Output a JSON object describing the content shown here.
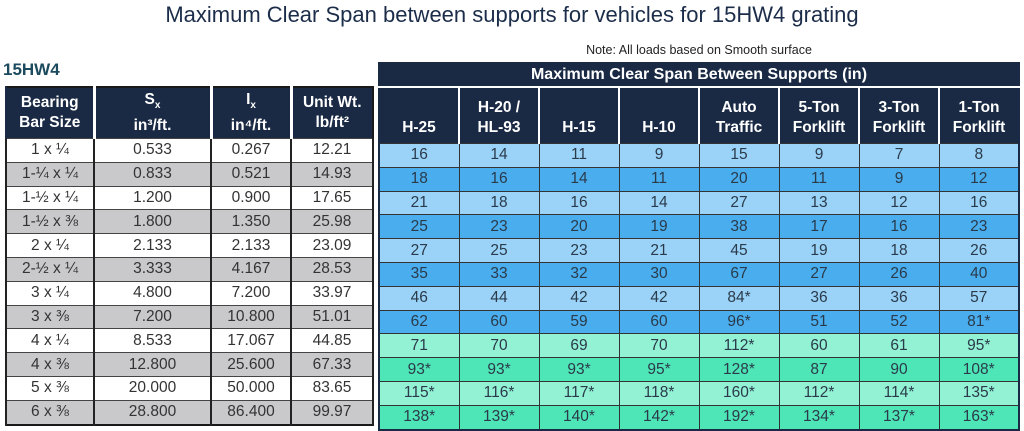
{
  "title": "Maximum Clear Span between supports for vehicles for 15HW4 grating",
  "note": "Note: All loads based on Smooth surface",
  "grating_code": "15HW4",
  "colors": {
    "header": "#1a2a44",
    "blue_light": "#9ad3f7",
    "blue_dark": "#4aaeee",
    "green_light": "#93f1d4",
    "green_dark": "#4fe6b7",
    "gray_row": "#c9c9cb"
  },
  "left_headers": [
    {
      "l1": "Bearing",
      "l2": "Bar Size"
    },
    {
      "l1": "S",
      "sub": "x",
      "l2": "in³/ft."
    },
    {
      "l1": "I",
      "sub": "x",
      "l2": "in⁴/ft."
    },
    {
      "l1": "Unit Wt.",
      "l2": "lb/ft²"
    }
  ],
  "span_header": "Maximum Clear Span Between Supports (in)",
  "span_columns": [
    {
      "l1": "",
      "l2": "H-25"
    },
    {
      "l1": "H-20 /",
      "l2": "HL-93"
    },
    {
      "l1": "",
      "l2": "H-15"
    },
    {
      "l1": "",
      "l2": "H-10"
    },
    {
      "l1": "Auto",
      "l2": "Traffic"
    },
    {
      "l1": "5-Ton",
      "l2": "Forklift"
    },
    {
      "l1": "3-Ton",
      "l2": "Forklift"
    },
    {
      "l1": "1-Ton",
      "l2": "Forklift"
    }
  ],
  "rows": [
    {
      "size": "1 x ¼",
      "sx": "0.533",
      "ix": "0.267",
      "wt": "12.21",
      "spans": [
        "16",
        "14",
        "11",
        "9",
        "15",
        "9",
        "7",
        "8"
      ]
    },
    {
      "size": "1-¼ x ¼",
      "sx": "0.833",
      "ix": "0.521",
      "wt": "14.93",
      "spans": [
        "18",
        "16",
        "14",
        "11",
        "20",
        "11",
        "9",
        "12"
      ]
    },
    {
      "size": "1-½ x ¼",
      "sx": "1.200",
      "ix": "0.900",
      "wt": "17.65",
      "spans": [
        "21",
        "18",
        "16",
        "14",
        "27",
        "13",
        "12",
        "16"
      ]
    },
    {
      "size": "1-½ x ⅜",
      "sx": "1.800",
      "ix": "1.350",
      "wt": "25.98",
      "spans": [
        "25",
        "23",
        "20",
        "19",
        "38",
        "17",
        "16",
        "23"
      ]
    },
    {
      "size": "2 x ¼",
      "sx": "2.133",
      "ix": "2.133",
      "wt": "23.09",
      "spans": [
        "27",
        "25",
        "23",
        "21",
        "45",
        "19",
        "18",
        "26"
      ]
    },
    {
      "size": "2-½ x ¼",
      "sx": "3.333",
      "ix": "4.167",
      "wt": "28.53",
      "spans": [
        "35",
        "33",
        "32",
        "30",
        "67",
        "27",
        "26",
        "40"
      ]
    },
    {
      "size": "3 x ¼",
      "sx": "4.800",
      "ix": "7.200",
      "wt": "33.97",
      "spans": [
        "46",
        "44",
        "42",
        "42",
        "84*",
        "36",
        "36",
        "57"
      ]
    },
    {
      "size": "3 x ⅜",
      "sx": "7.200",
      "ix": "10.800",
      "wt": "51.01",
      "spans": [
        "62",
        "60",
        "59",
        "60",
        "96*",
        "51",
        "52",
        "81*"
      ]
    },
    {
      "size": "4 x ¼",
      "sx": "8.533",
      "ix": "17.067",
      "wt": "44.85",
      "spans": [
        "71",
        "70",
        "69",
        "70",
        "112*",
        "60",
        "61",
        "95*"
      ]
    },
    {
      "size": "4 x ⅜",
      "sx": "12.800",
      "ix": "25.600",
      "wt": "67.33",
      "spans": [
        "93*",
        "93*",
        "93*",
        "95*",
        "128*",
        "87",
        "90",
        "108*"
      ]
    },
    {
      "size": "5 x ⅜",
      "sx": "20.000",
      "ix": "50.000",
      "wt": "83.65",
      "spans": [
        "115*",
        "116*",
        "117*",
        "118*",
        "160*",
        "112*",
        "114*",
        "135*"
      ]
    },
    {
      "size": "6 x ⅜",
      "sx": "28.800",
      "ix": "86.400",
      "wt": "99.97",
      "spans": [
        "138*",
        "139*",
        "140*",
        "142*",
        "192*",
        "134*",
        "137*",
        "163*"
      ]
    }
  ]
}
